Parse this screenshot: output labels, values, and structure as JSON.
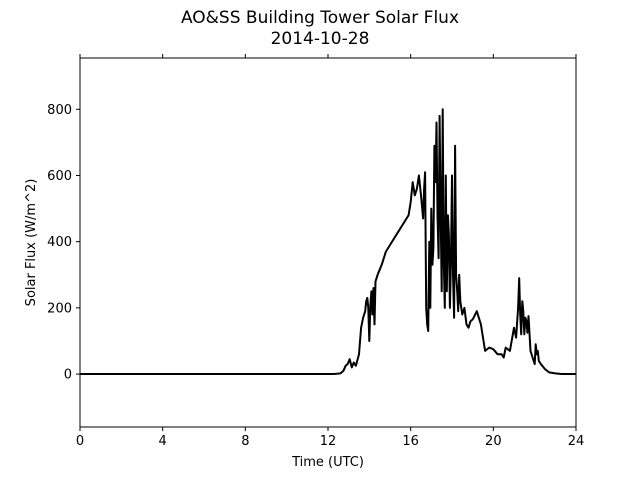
{
  "chart_data": {
    "type": "line",
    "title": "AO&SS Building Tower Solar Flux",
    "subtitle": "2014-10-28",
    "xlabel": "Time (UTC)",
    "ylabel": "Solar Flux (W/m^2)",
    "xlim": [
      0,
      24
    ],
    "ylim": [
      -160,
      955
    ],
    "xticks": [
      0,
      4,
      8,
      12,
      16,
      20,
      24
    ],
    "yticks": [
      0,
      200,
      400,
      600,
      800
    ],
    "grid": false,
    "line_color": "#000000",
    "series": [
      {
        "x": [
          0,
          12.0,
          12.3,
          12.6,
          12.75,
          12.85,
          12.95,
          13.05,
          13.15,
          13.25,
          13.35,
          13.5,
          13.6,
          13.7,
          13.8,
          13.85,
          13.9,
          13.95,
          14.0,
          14.05,
          14.1,
          14.15,
          14.2,
          14.25,
          14.3,
          14.4,
          14.6,
          14.8,
          15.0,
          15.2,
          15.4,
          15.6,
          15.7,
          15.8,
          15.9,
          16.0,
          16.1,
          16.2,
          16.3,
          16.4,
          16.5,
          16.6,
          16.65,
          16.7,
          16.75,
          16.8,
          16.85,
          16.9,
          16.95,
          17.0,
          17.05,
          17.1,
          17.15,
          17.2,
          17.25,
          17.3,
          17.35,
          17.4,
          17.45,
          17.5,
          17.55,
          17.6,
          17.65,
          17.7,
          17.75,
          17.8,
          17.85,
          17.9,
          17.95,
          18.0,
          18.05,
          18.1,
          18.15,
          18.2,
          18.25,
          18.3,
          18.35,
          18.4,
          18.5,
          18.6,
          18.7,
          18.8,
          18.9,
          19.0,
          19.2,
          19.4,
          19.5,
          19.6,
          19.8,
          20.0,
          20.2,
          20.4,
          20.5,
          20.6,
          20.8,
          21.0,
          21.1,
          21.2,
          21.25,
          21.3,
          21.35,
          21.4,
          21.45,
          21.5,
          21.55,
          21.6,
          21.65,
          21.7,
          21.8,
          21.9,
          22.0,
          22.05,
          22.1,
          22.15,
          22.2,
          22.3,
          22.5,
          22.7,
          23.0,
          23.3,
          24.0
        ],
        "y": [
          0,
          0,
          0,
          2,
          10,
          25,
          30,
          45,
          20,
          35,
          25,
          60,
          140,
          170,
          190,
          220,
          230,
          200,
          100,
          210,
          250,
          180,
          260,
          150,
          280,
          300,
          330,
          370,
          390,
          410,
          430,
          450,
          460,
          470,
          480,
          520,
          580,
          540,
          560,
          600,
          540,
          470,
          560,
          610,
          200,
          150,
          130,
          400,
          200,
          500,
          330,
          380,
          690,
          580,
          760,
          480,
          350,
          780,
          500,
          250,
          800,
          350,
          200,
          600,
          250,
          480,
          420,
          200,
          350,
          600,
          300,
          170,
          690,
          300,
          250,
          190,
          300,
          220,
          180,
          200,
          150,
          140,
          160,
          165,
          190,
          150,
          110,
          70,
          80,
          75,
          60,
          60,
          50,
          80,
          70,
          140,
          110,
          200,
          290,
          180,
          120,
          220,
          190,
          120,
          170,
          160,
          125,
          175,
          70,
          50,
          30,
          90,
          60,
          70,
          40,
          30,
          15,
          5,
          2,
          0,
          0
        ]
      }
    ]
  }
}
